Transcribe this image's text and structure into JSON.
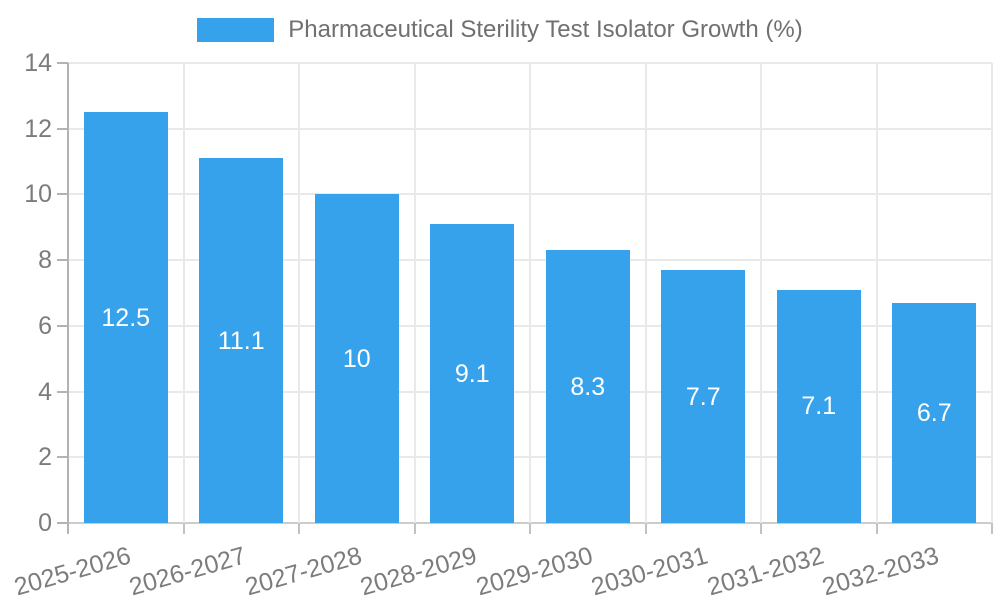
{
  "legend": {
    "label": "Pharmaceutical Sterility Test Isolator Growth (%)"
  },
  "chart_data": {
    "type": "bar",
    "title": "Pharmaceutical Sterility Test Isolator Growth (%)",
    "series_name": "Pharmaceutical Sterility Test Isolator Growth (%)",
    "categories": [
      "2025-2026",
      "2026-2027",
      "2027-2028",
      "2028-2029",
      "2029-2030",
      "2030-2031",
      "2031-2032",
      "2032-2033"
    ],
    "values": [
      12.5,
      11.1,
      10,
      9.1,
      8.3,
      7.7,
      7.1,
      6.7
    ],
    "value_labels": [
      "12.5",
      "11.1",
      "10",
      "9.1",
      "8.3",
      "7.7",
      "7.1",
      "6.7"
    ],
    "xlabel": "",
    "ylabel": "",
    "ylim": [
      0,
      14
    ],
    "yticks": [
      0,
      2,
      4,
      6,
      8,
      10,
      12,
      14
    ],
    "grid": true,
    "legend_position": "top",
    "bar_color": "#36A2EB",
    "value_label_color": "#ffffff",
    "axis_text_color": "#7c7c7c",
    "legend_text_color": "#707070",
    "gridline_color": "#e9e9e9",
    "axis_line_color": "#b3b3b3",
    "background_color": "#ffffff"
  }
}
